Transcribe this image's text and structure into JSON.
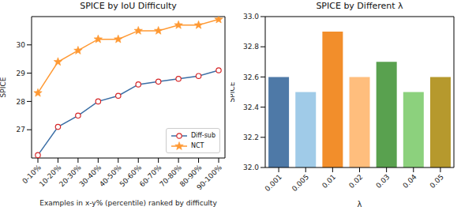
{
  "chart_data": [
    {
      "type": "line",
      "title": "SPICE by IoU Difficulty",
      "x_label": "Examples in x-y% (percentile) ranked by difficulty",
      "y_label": "SPICE",
      "categories": [
        "0-10%",
        "10-20%",
        "20-30%",
        "30-40%",
        "40-50%",
        "50-60%",
        "60-70%",
        "70-80%",
        "80-90%",
        "90-100%"
      ],
      "series": [
        {
          "name": "Diff-sub",
          "color": "#3a6ea5",
          "marker": "circle",
          "values": [
            26.1,
            27.1,
            27.5,
            28.0,
            28.2,
            28.6,
            28.7,
            28.8,
            28.9,
            29.1
          ]
        },
        {
          "name": "NCT",
          "color": "#ff9933",
          "marker": "star",
          "values": [
            28.3,
            29.4,
            29.8,
            30.2,
            30.2,
            30.5,
            30.5,
            30.7,
            30.7,
            30.9
          ]
        }
      ],
      "ylim": [
        26,
        31
      ],
      "yticks": [
        27,
        28,
        29,
        30
      ],
      "legend": "lower right",
      "grid": false
    },
    {
      "type": "bar",
      "title": "SPICE by Different λ",
      "x_label": "λ",
      "y_label": "SPICE",
      "categories": [
        "0.001",
        "0.005",
        "0.01",
        "0.02",
        "0.03",
        "0.04",
        "0.05"
      ],
      "values": [
        32.6,
        32.5,
        32.9,
        32.6,
        32.7,
        32.5,
        32.6
      ],
      "colors": [
        "#4e79a7",
        "#a0cbe8",
        "#f28e2b",
        "#ffbe7d",
        "#59a14f",
        "#8cd17d",
        "#b6992d"
      ],
      "ylim": [
        32,
        33
      ],
      "yticks": [
        {
          "value": 32,
          "label": "32.0"
        },
        32.2,
        32.4,
        32.6,
        32.8,
        {
          "value": 33,
          "label": "33.0"
        }
      ],
      "grid": false
    }
  ]
}
